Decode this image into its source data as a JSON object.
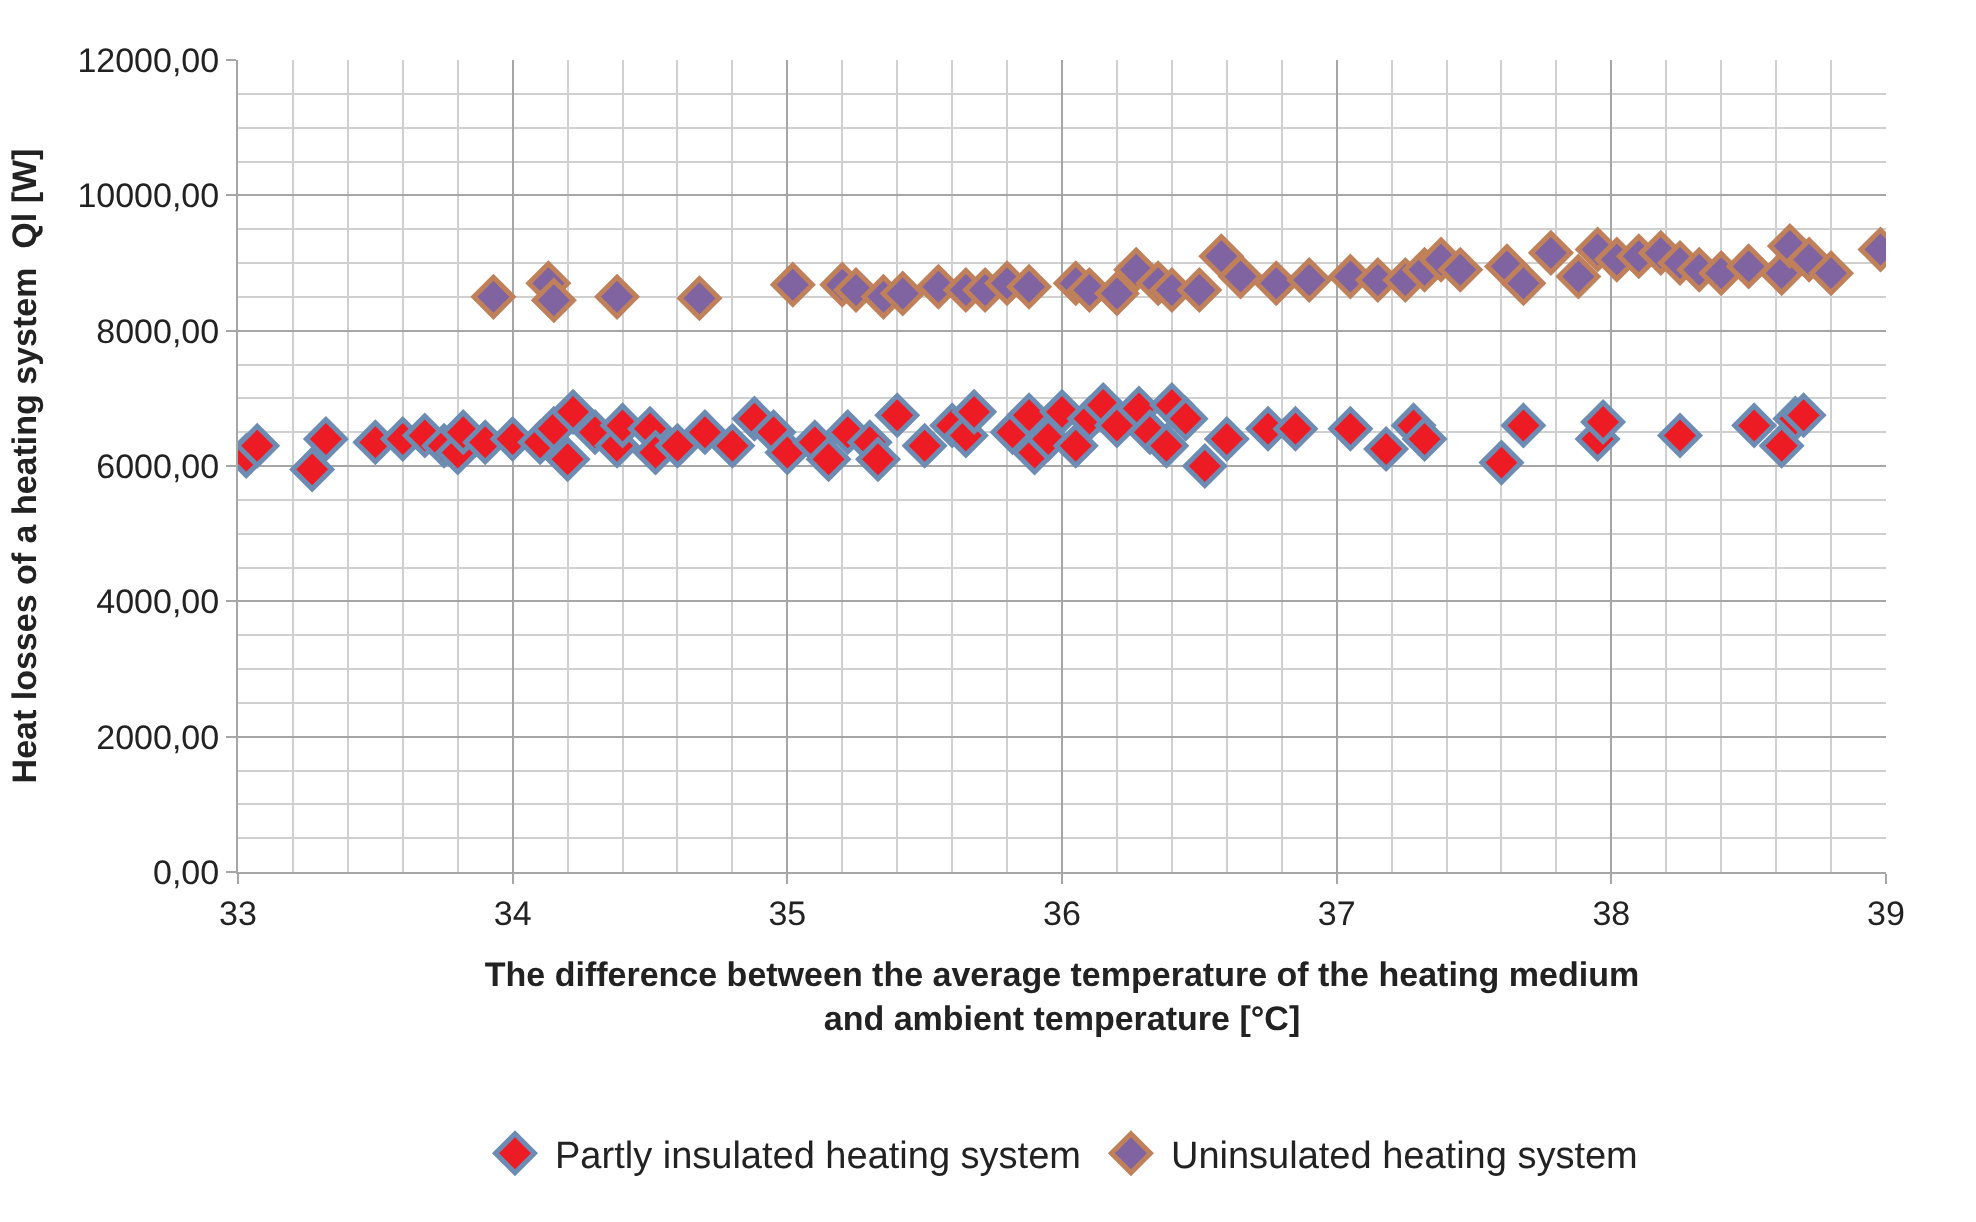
{
  "chart_data": {
    "type": "scatter",
    "xlabel": "The difference between the average temperature of the heating medium and ambient temperature [°C]",
    "ylabel": "Heat losses of a heating system  Ql [W]",
    "xlim": [
      33,
      39
    ],
    "xticks": [
      33,
      34,
      35,
      36,
      37,
      38,
      39
    ],
    "ylim": [
      0,
      12000
    ],
    "yticks": [
      {
        "value": 0,
        "label": "0,00"
      },
      {
        "value": 2000,
        "label": "2000,00"
      },
      {
        "value": 4000,
        "label": "4000,00"
      },
      {
        "value": 6000,
        "label": "6000,00"
      },
      {
        "value": 8000,
        "label": "8000,00"
      },
      {
        "value": 10000,
        "label": "10000,00"
      },
      {
        "value": 12000,
        "label": "12000,00"
      }
    ],
    "grid": true,
    "legend": "bottom",
    "marker": "diamond",
    "series": [
      {
        "name": "Partly insulated heating system",
        "color": "#ed1c24",
        "x": [
          33.03,
          33.07,
          33.27,
          33.32,
          33.5,
          33.6,
          33.68,
          33.75,
          33.8,
          33.82,
          33.9,
          34.0,
          34.1,
          34.15,
          34.2,
          34.22,
          34.3,
          34.38,
          34.4,
          34.5,
          34.52,
          34.6,
          34.7,
          34.8,
          34.88,
          34.95,
          35.0,
          35.1,
          35.15,
          35.22,
          35.3,
          35.33,
          35.4,
          35.5,
          35.6,
          35.65,
          35.68,
          35.82,
          35.88,
          35.9,
          35.95,
          36.0,
          36.05,
          36.1,
          36.15,
          36.2,
          36.28,
          36.32,
          36.38,
          36.4,
          36.45,
          36.52,
          36.6,
          36.75,
          36.85,
          37.05,
          37.18,
          37.28,
          37.32,
          37.6,
          37.68,
          37.95,
          37.97,
          38.25,
          38.52,
          38.62,
          38.67,
          38.7
        ],
        "values": [
          6150,
          6300,
          5950,
          6400,
          6350,
          6400,
          6450,
          6300,
          6200,
          6500,
          6350,
          6400,
          6350,
          6550,
          6100,
          6800,
          6500,
          6300,
          6600,
          6550,
          6200,
          6300,
          6500,
          6300,
          6700,
          6500,
          6200,
          6350,
          6100,
          6500,
          6350,
          6100,
          6750,
          6300,
          6600,
          6450,
          6800,
          6500,
          6750,
          6200,
          6400,
          6800,
          6300,
          6700,
          6900,
          6600,
          6850,
          6500,
          6300,
          6900,
          6700,
          6000,
          6400,
          6550,
          6550,
          6550,
          6250,
          6600,
          6400,
          6050,
          6600,
          6400,
          6650,
          6450,
          6600,
          6300,
          6700,
          6750
        ]
      },
      {
        "name": "Uninsulated heating system",
        "color": "#8064a2",
        "x": [
          33.93,
          34.13,
          34.15,
          34.38,
          34.68,
          35.02,
          35.2,
          35.25,
          35.35,
          35.42,
          35.55,
          35.62,
          35.65,
          35.72,
          35.8,
          35.88,
          36.05,
          36.1,
          36.2,
          36.27,
          36.35,
          36.4,
          36.5,
          36.58,
          36.65,
          36.78,
          36.9,
          37.05,
          37.15,
          37.25,
          37.32,
          37.38,
          37.45,
          37.62,
          37.68,
          37.78,
          37.88,
          37.95,
          38.02,
          38.1,
          38.18,
          38.25,
          38.32,
          38.4,
          38.5,
          38.62,
          38.65,
          38.72,
          38.8,
          38.98
        ],
        "values": [
          8500,
          8700,
          8450,
          8500,
          8480,
          8680,
          8680,
          8600,
          8500,
          8550,
          8650,
          null,
          8600,
          8600,
          8700,
          8650,
          8700,
          8600,
          8550,
          8900,
          8700,
          8600,
          8600,
          9100,
          8800,
          8700,
          8750,
          8800,
          8750,
          8750,
          8900,
          9050,
          8900,
          8950,
          8700,
          9150,
          8800,
          9200,
          9050,
          9100,
          9150,
          9000,
          8900,
          8850,
          8950,
          8850,
          9250,
          9050,
          8850,
          9200
        ]
      }
    ]
  }
}
